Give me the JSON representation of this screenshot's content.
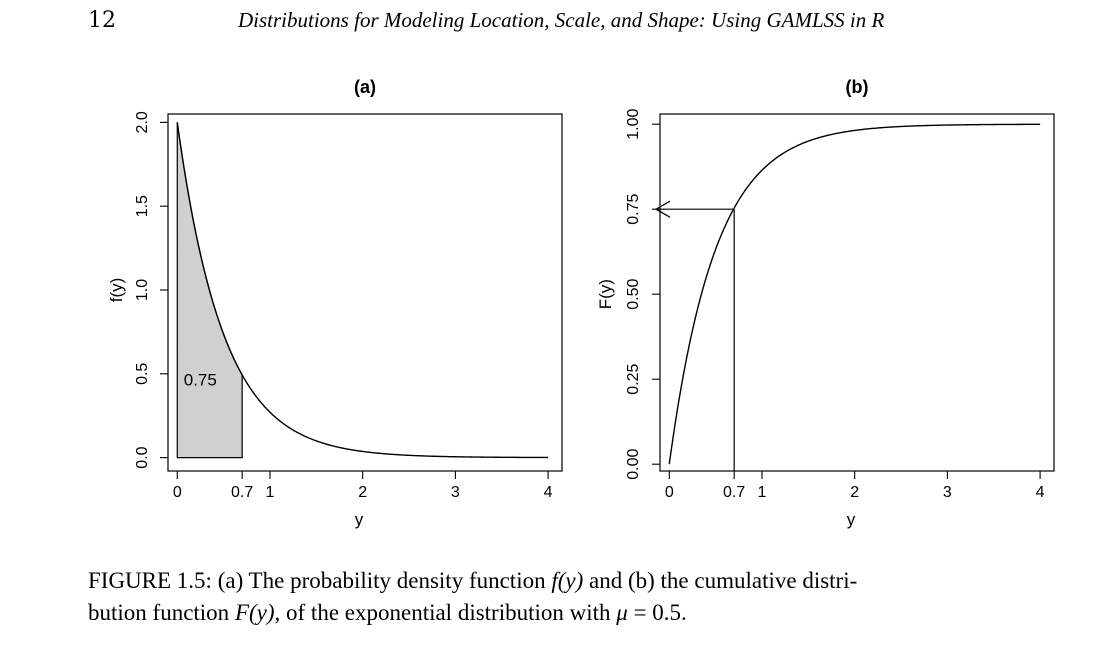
{
  "header": {
    "page_number": "12",
    "running_title": "Distributions for Modeling Location, Scale, and Shape: Using GAMLSS in R"
  },
  "chart_data": [
    {
      "panel": "(a)",
      "type": "area",
      "title": "(a)",
      "xlabel": "y",
      "ylabel": "f(y)",
      "xlim": [
        -0.1,
        4.15
      ],
      "ylim": [
        -0.08,
        2.05
      ],
      "xticks": [
        0,
        0.7,
        1,
        2,
        3,
        4
      ],
      "xtick_labels": [
        "0",
        "0.7",
        "1",
        "2",
        "3",
        "4"
      ],
      "yticks": [
        0,
        0.5,
        1,
        1.5,
        2
      ],
      "ytick_labels": [
        "0.0",
        "0.5",
        "1.0",
        "1.5",
        "2.0"
      ],
      "series": [
        {
          "function": "f(y) = 2 exp(-2y)",
          "x_range": [
            0,
            4
          ]
        }
      ],
      "shaded_region": {
        "x_from": 0,
        "x_to": 0.7,
        "label": "0.75",
        "fill": "#d0d0d0"
      },
      "grid": false
    },
    {
      "panel": "(b)",
      "type": "line",
      "title": "(b)",
      "xlabel": "y",
      "ylabel": "F(y)",
      "xlim": [
        -0.1,
        4.15
      ],
      "ylim": [
        -0.02,
        1.03
      ],
      "xticks": [
        0,
        0.7,
        1,
        2,
        3,
        4
      ],
      "xtick_labels": [
        "0",
        "0.7",
        "1",
        "2",
        "3",
        "4"
      ],
      "yticks": [
        0,
        0.25,
        0.5,
        0.75,
        1
      ],
      "ytick_labels": [
        "0.00",
        "0.25",
        "0.50",
        "0.75",
        "1.00"
      ],
      "series": [
        {
          "function": "F(y) = 1 - exp(-2y)",
          "x_range": [
            0,
            4
          ]
        }
      ],
      "annotation": {
        "x": 0.7,
        "y": 0.75,
        "arrow": "to-y-axis"
      },
      "grid": false
    }
  ],
  "caption": {
    "lead": "FIGURE 1.5: (a) The probability density function ",
    "f_sym": "f(y)",
    "mid1": " and (b) the cumulative distri-",
    "mid2": "bution function ",
    "F_sym": "F(y)",
    "mid3": ", of the exponential distribution with ",
    "mu_sym": "μ",
    "tail": " = 0.5."
  }
}
